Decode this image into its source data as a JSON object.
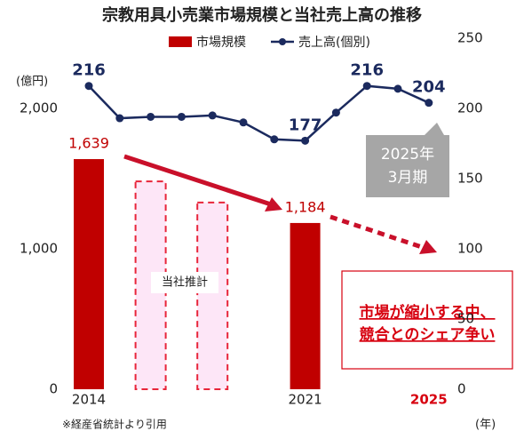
{
  "chart_data": {
    "type": "bar-line",
    "title": "宗教用具小売業市場規模と当社売上高の推移",
    "categories": [
      "2014",
      null,
      null,
      null,
      null,
      null,
      null,
      "2021",
      null,
      null,
      null,
      "2025"
    ],
    "highlight": {
      "index": 11,
      "color": "#d7000f"
    },
    "series": [
      {
        "name": "市場規模",
        "type": "bar",
        "color": "#c00000",
        "values": [
          1639,
          null,
          null,
          null,
          null,
          null,
          null,
          1184,
          null,
          null,
          null,
          null
        ],
        "value_labels": [
          "1,639",
          null,
          null,
          null,
          null,
          null,
          null,
          "1,184",
          null,
          null,
          null,
          null
        ]
      },
      {
        "name": "当社推計",
        "type": "bar",
        "style": "dashed",
        "legend": false,
        "color": "#e8253a",
        "fill": "#fde6f7",
        "values": [
          null,
          null,
          1480,
          null,
          1330,
          null,
          null,
          null,
          null,
          null,
          null,
          null
        ]
      },
      {
        "name": "売上高(個別)",
        "type": "line",
        "axis": "y2",
        "color": "#1b2a5e",
        "values": [
          216,
          193,
          194,
          194,
          195,
          190,
          178,
          177,
          197,
          216,
          214,
          204
        ],
        "value_labels": [
          "216",
          null,
          null,
          null,
          null,
          null,
          null,
          "177",
          null,
          "216",
          null,
          "204"
        ]
      }
    ],
    "ylabel": "(億円)",
    "xlabel": "(年)",
    "ylim": [
      0,
      2500
    ],
    "yticks": [
      0,
      {
        "value": 1000,
        "label": "1,000"
      },
      {
        "value": 2000,
        "label": "2,000"
      }
    ],
    "y2lim": [
      0,
      250
    ],
    "y2ticks": [
      0,
      50,
      100,
      150,
      200,
      250
    ],
    "grid": false,
    "annotations": {
      "period": [
        "2025年",
        "3月期"
      ],
      "message": [
        "市場が縮小する中、",
        "競合とのシェア争い"
      ],
      "source": "※経産省統計より引用"
    }
  }
}
